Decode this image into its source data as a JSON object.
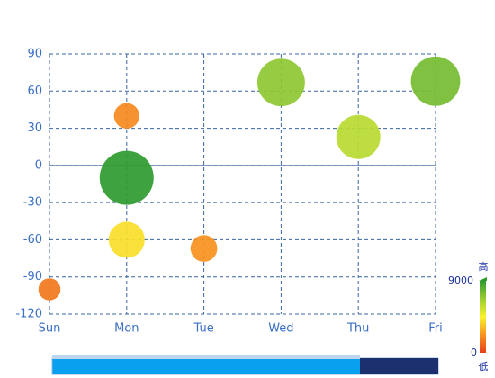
{
  "chart_data": {
    "type": "bubble",
    "categories": [
      "Sun",
      "Mon",
      "Tue",
      "Wed",
      "Thu",
      "Fri"
    ],
    "x": [
      "Sun",
      "Mon",
      "Mon",
      "Mon",
      "Tue",
      "Wed",
      "Thu",
      "Fri"
    ],
    "values": [
      -100,
      40,
      -10,
      -60,
      -67,
      67,
      23,
      68
    ],
    "sizes": [
      1500,
      2000,
      9000,
      4000,
      2200,
      7000,
      6000,
      7500
    ],
    "ylim": [
      -120,
      90
    ],
    "yticks": [
      -120,
      -90,
      -60,
      -30,
      0,
      30,
      60,
      90
    ],
    "grid": true,
    "visual_map": {
      "range": [
        0,
        9000
      ],
      "high_label": "高",
      "low_label": "低",
      "colors": [
        "#e8401c",
        "#f7931e",
        "#f8f32b",
        "#9acd32",
        "#2e9b2e"
      ]
    }
  }
}
